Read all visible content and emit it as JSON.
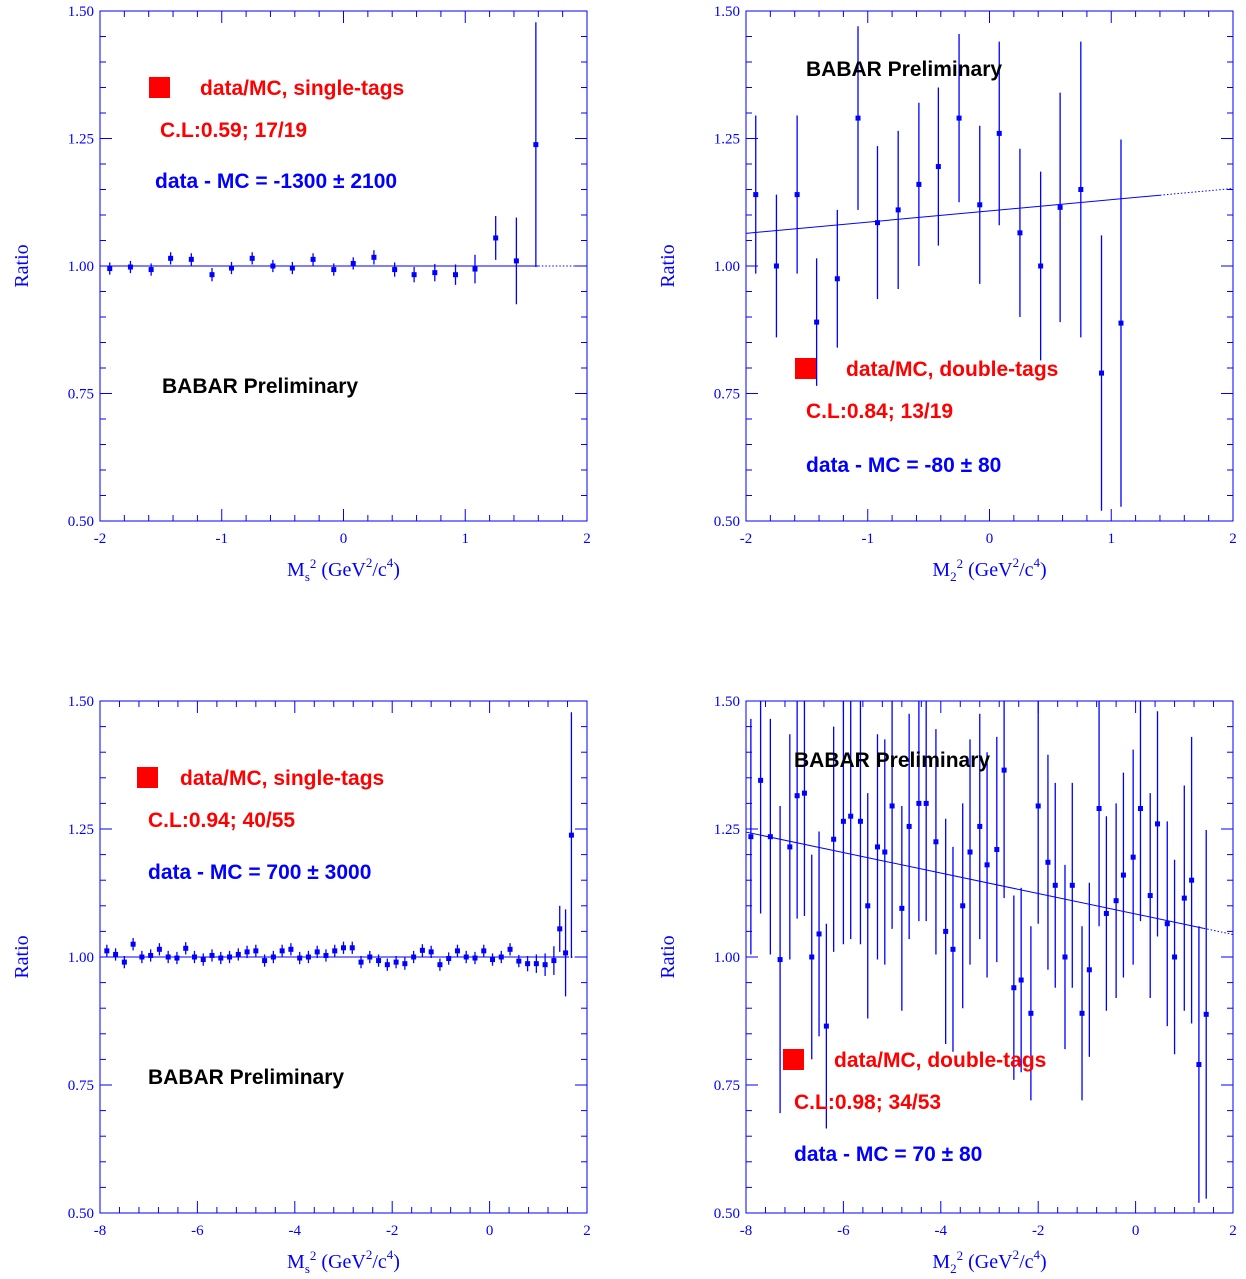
{
  "colors": {
    "axes": "#0000ff",
    "data": "#0000ff",
    "legend_marker": "#ff0000",
    "legend_text": "#ff0000",
    "stat_text": "#0000ff",
    "preliminary_text": "#000000"
  },
  "chart_data": [
    {
      "type": "scatter",
      "ylabel": "Ratio",
      "xlabel_main": "M",
      "xlabel_sub": "s",
      "xlabel_sup": "2",
      "xlabel_unit_pre": " (GeV",
      "xlabel_unit_mid": "/c",
      "xlabel_unit_sup1": "2",
      "xlabel_unit_sup2": "4",
      "xlabel_unit_post": ")",
      "xlim": [
        -2,
        2
      ],
      "ylim": [
        0.5,
        1.5
      ],
      "xticks": [
        "-2",
        "-1",
        "0",
        "1",
        "2"
      ],
      "yticks": [
        "0.50",
        "0.75",
        "1.00",
        "1.25",
        "1.50"
      ],
      "legend": "data/MC, single-tags",
      "cl": "C.L:0.59; 17/19",
      "diff": "data - MC =  -1300 ± 2100",
      "preliminary": "BABAR Preliminary",
      "fit": {
        "intercept": 1.0,
        "slope": 0.0,
        "solid_to": 1.6
      },
      "points": [
        {
          "x": -1.92,
          "y": 0.995,
          "err": 0.012
        },
        {
          "x": -1.75,
          "y": 0.998,
          "err": 0.012
        },
        {
          "x": -1.58,
          "y": 0.993,
          "err": 0.012
        },
        {
          "x": -1.42,
          "y": 1.015,
          "err": 0.012
        },
        {
          "x": -1.25,
          "y": 1.013,
          "err": 0.012
        },
        {
          "x": -1.08,
          "y": 0.983,
          "err": 0.013
        },
        {
          "x": -0.92,
          "y": 0.996,
          "err": 0.012
        },
        {
          "x": -0.75,
          "y": 1.015,
          "err": 0.012
        },
        {
          "x": -0.58,
          "y": 1.0,
          "err": 0.012
        },
        {
          "x": -0.42,
          "y": 0.996,
          "err": 0.012
        },
        {
          "x": -0.25,
          "y": 1.013,
          "err": 0.012
        },
        {
          "x": -0.08,
          "y": 0.993,
          "err": 0.012
        },
        {
          "x": 0.08,
          "y": 1.005,
          "err": 0.012
        },
        {
          "x": 0.25,
          "y": 1.017,
          "err": 0.014
        },
        {
          "x": 0.42,
          "y": 0.993,
          "err": 0.014
        },
        {
          "x": 0.58,
          "y": 0.983,
          "err": 0.015
        },
        {
          "x": 0.75,
          "y": 0.987,
          "err": 0.017
        },
        {
          "x": 0.92,
          "y": 0.983,
          "err": 0.02
        },
        {
          "x": 1.08,
          "y": 0.994,
          "err": 0.028
        },
        {
          "x": 1.25,
          "y": 1.055,
          "err": 0.043
        },
        {
          "x": 1.42,
          "y": 1.01,
          "err": 0.085
        },
        {
          "x": 1.58,
          "y": 1.238,
          "err": 0.24
        }
      ]
    },
    {
      "type": "scatter",
      "ylabel": "Ratio",
      "xlabel_main": "M",
      "xlabel_sub": "2",
      "xlabel_sup": "2",
      "xlabel_unit_pre": " (GeV",
      "xlabel_unit_mid": "/c",
      "xlabel_unit_sup1": "2",
      "xlabel_unit_sup2": "4",
      "xlabel_unit_post": ")",
      "xlim": [
        -2,
        2
      ],
      "ylim": [
        0.5,
        1.5
      ],
      "xticks": [
        "-2",
        "-1",
        "0",
        "1",
        "2"
      ],
      "yticks": [
        "0.50",
        "0.75",
        "1.00",
        "1.25",
        "1.50"
      ],
      "legend": "data/MC, double-tags",
      "cl": "C.L:0.84; 13/19",
      "diff": "data - MC = -80 ± 80",
      "preliminary": "BABAR Preliminary",
      "fit": {
        "intercept": 1.108,
        "slope": 0.022,
        "solid_to": 1.4
      },
      "points": [
        {
          "x": -1.92,
          "y": 1.14,
          "err": 0.155
        },
        {
          "x": -1.75,
          "y": 1.0,
          "err": 0.14
        },
        {
          "x": -1.58,
          "y": 1.14,
          "err": 0.155
        },
        {
          "x": -1.42,
          "y": 0.89,
          "err": 0.125
        },
        {
          "x": -1.25,
          "y": 0.975,
          "err": 0.135
        },
        {
          "x": -1.08,
          "y": 1.29,
          "err": 0.18
        },
        {
          "x": -0.92,
          "y": 1.085,
          "err": 0.15
        },
        {
          "x": -0.75,
          "y": 1.11,
          "err": 0.155
        },
        {
          "x": -0.58,
          "y": 1.16,
          "err": 0.16
        },
        {
          "x": -0.42,
          "y": 1.195,
          "err": 0.155
        },
        {
          "x": -0.25,
          "y": 1.29,
          "err": 0.165
        },
        {
          "x": -0.08,
          "y": 1.12,
          "err": 0.155
        },
        {
          "x": 0.08,
          "y": 1.26,
          "err": 0.18
        },
        {
          "x": 0.25,
          "y": 1.065,
          "err": 0.165
        },
        {
          "x": 0.42,
          "y": 1.0,
          "err": 0.185
        },
        {
          "x": 0.58,
          "y": 1.115,
          "err": 0.225
        },
        {
          "x": 0.75,
          "y": 1.15,
          "err": 0.29
        },
        {
          "x": 0.92,
          "y": 0.79,
          "err": 0.27
        },
        {
          "x": 1.08,
          "y": 0.888,
          "err": 0.36
        }
      ]
    },
    {
      "type": "scatter",
      "ylabel": "Ratio",
      "xlabel_main": "M",
      "xlabel_sub": "s",
      "xlabel_sup": "2",
      "xlabel_unit_pre": " (GeV",
      "xlabel_unit_mid": "/c",
      "xlabel_unit_sup1": "2",
      "xlabel_unit_sup2": "4",
      "xlabel_unit_post": ")",
      "xlim": [
        -8,
        2
      ],
      "ylim": [
        0.5,
        1.5
      ],
      "xticks": [
        "-8",
        "-6",
        "-4",
        "-2",
        "0",
        "2"
      ],
      "yticks": [
        "0.50",
        "0.75",
        "1.00",
        "1.25",
        "1.50"
      ],
      "legend": "data/MC, single-tags",
      "cl": "C.L:0.94; 40/55",
      "diff": "data - MC = 700 ± 3000",
      "preliminary": "BABAR Preliminary",
      "fit": {
        "intercept": 1.0,
        "slope": 0.0,
        "solid_to": 1.6
      },
      "points": [
        {
          "x": -7.86,
          "y": 1.012,
          "err": 0.012
        },
        {
          "x": -7.68,
          "y": 1.005,
          "err": 0.012
        },
        {
          "x": -7.5,
          "y": 0.99,
          "err": 0.012
        },
        {
          "x": -7.32,
          "y": 1.025,
          "err": 0.012
        },
        {
          "x": -7.14,
          "y": 1.0,
          "err": 0.012
        },
        {
          "x": -6.96,
          "y": 1.003,
          "err": 0.012
        },
        {
          "x": -6.78,
          "y": 1.015,
          "err": 0.012
        },
        {
          "x": -6.6,
          "y": 1.0,
          "err": 0.012
        },
        {
          "x": -6.42,
          "y": 0.998,
          "err": 0.012
        },
        {
          "x": -6.24,
          "y": 1.017,
          "err": 0.012
        },
        {
          "x": -6.06,
          "y": 1.0,
          "err": 0.012
        },
        {
          "x": -5.88,
          "y": 0.995,
          "err": 0.012
        },
        {
          "x": -5.7,
          "y": 1.003,
          "err": 0.012
        },
        {
          "x": -5.52,
          "y": 0.998,
          "err": 0.012
        },
        {
          "x": -5.34,
          "y": 1.0,
          "err": 0.012
        },
        {
          "x": -5.16,
          "y": 1.005,
          "err": 0.012
        },
        {
          "x": -4.98,
          "y": 1.01,
          "err": 0.012
        },
        {
          "x": -4.8,
          "y": 1.012,
          "err": 0.012
        },
        {
          "x": -4.62,
          "y": 0.993,
          "err": 0.012
        },
        {
          "x": -4.44,
          "y": 1.0,
          "err": 0.012
        },
        {
          "x": -4.26,
          "y": 1.012,
          "err": 0.012
        },
        {
          "x": -4.08,
          "y": 1.015,
          "err": 0.012
        },
        {
          "x": -3.9,
          "y": 0.998,
          "err": 0.012
        },
        {
          "x": -3.72,
          "y": 1.0,
          "err": 0.012
        },
        {
          "x": -3.54,
          "y": 1.01,
          "err": 0.012
        },
        {
          "x": -3.36,
          "y": 1.003,
          "err": 0.012
        },
        {
          "x": -3.18,
          "y": 1.012,
          "err": 0.012
        },
        {
          "x": -3.0,
          "y": 1.018,
          "err": 0.012
        },
        {
          "x": -2.82,
          "y": 1.018,
          "err": 0.012
        },
        {
          "x": -2.64,
          "y": 0.99,
          "err": 0.012
        },
        {
          "x": -2.46,
          "y": 1.0,
          "err": 0.012
        },
        {
          "x": -2.28,
          "y": 0.993,
          "err": 0.012
        },
        {
          "x": -2.1,
          "y": 0.985,
          "err": 0.012
        },
        {
          "x": -1.92,
          "y": 0.99,
          "err": 0.012
        },
        {
          "x": -1.74,
          "y": 0.987,
          "err": 0.012
        },
        {
          "x": -1.56,
          "y": 1.0,
          "err": 0.012
        },
        {
          "x": -1.38,
          "y": 1.013,
          "err": 0.012
        },
        {
          "x": -1.2,
          "y": 1.01,
          "err": 0.012
        },
        {
          "x": -1.02,
          "y": 0.985,
          "err": 0.012
        },
        {
          "x": -0.84,
          "y": 0.997,
          "err": 0.012
        },
        {
          "x": -0.66,
          "y": 1.012,
          "err": 0.012
        },
        {
          "x": -0.48,
          "y": 1.0,
          "err": 0.012
        },
        {
          "x": -0.3,
          "y": 0.998,
          "err": 0.012
        },
        {
          "x": -0.12,
          "y": 1.012,
          "err": 0.012
        },
        {
          "x": 0.06,
          "y": 0.995,
          "err": 0.012
        },
        {
          "x": 0.24,
          "y": 1.0,
          "err": 0.012
        },
        {
          "x": 0.42,
          "y": 1.015,
          "err": 0.012
        },
        {
          "x": 0.6,
          "y": 0.992,
          "err": 0.012
        },
        {
          "x": 0.78,
          "y": 0.987,
          "err": 0.015
        },
        {
          "x": 0.96,
          "y": 0.987,
          "err": 0.018
        },
        {
          "x": 1.14,
          "y": 0.985,
          "err": 0.022
        },
        {
          "x": 1.32,
          "y": 0.993,
          "err": 0.028
        },
        {
          "x": 1.44,
          "y": 1.055,
          "err": 0.045
        },
        {
          "x": 1.56,
          "y": 1.008,
          "err": 0.085
        },
        {
          "x": 1.68,
          "y": 1.238,
          "err": 0.24
        }
      ]
    },
    {
      "type": "scatter",
      "ylabel": "Ratio",
      "xlabel_main": "M",
      "xlabel_sub": "2",
      "xlabel_sup": "2",
      "xlabel_unit_pre": " (GeV",
      "xlabel_unit_mid": "/c",
      "xlabel_unit_sup1": "2",
      "xlabel_unit_sup2": "4",
      "xlabel_unit_post": ")",
      "xlim": [
        -8,
        2
      ],
      "ylim": [
        0.5,
        1.5
      ],
      "xticks": [
        "-8",
        "-6",
        "-4",
        "-2",
        "0",
        "2"
      ],
      "yticks": [
        "0.50",
        "0.75",
        "1.00",
        "1.25",
        "1.50"
      ],
      "legend": "data/MC, double-tags",
      "cl": "C.L:0.98; 34/53",
      "diff": "data - MC = 70 ± 80",
      "preliminary": "BABAR Preliminary",
      "fit": {
        "intercept": 1.084,
        "slope": -0.02,
        "solid_to": 1.4
      },
      "points": [
        {
          "x": -7.9,
          "y": 1.235,
          "err": 0.23
        },
        {
          "x": -7.7,
          "y": 1.345,
          "err": 0.26
        },
        {
          "x": -7.5,
          "y": 1.235,
          "err": 0.23
        },
        {
          "x": -7.3,
          "y": 0.995,
          "err": 0.3
        },
        {
          "x": -7.1,
          "y": 1.215,
          "err": 0.22
        },
        {
          "x": -6.95,
          "y": 1.315,
          "err": 0.24
        },
        {
          "x": -6.8,
          "y": 1.32,
          "err": 0.24
        },
        {
          "x": -6.65,
          "y": 1.0,
          "err": 0.2
        },
        {
          "x": -6.5,
          "y": 1.045,
          "err": 0.2
        },
        {
          "x": -6.35,
          "y": 0.865,
          "err": 0.2
        },
        {
          "x": -6.2,
          "y": 1.23,
          "err": 0.22
        },
        {
          "x": -6.0,
          "y": 1.265,
          "err": 0.24
        },
        {
          "x": -5.85,
          "y": 1.275,
          "err": 0.24
        },
        {
          "x": -5.65,
          "y": 1.265,
          "err": 0.24
        },
        {
          "x": -5.5,
          "y": 1.1,
          "err": 0.22
        },
        {
          "x": -5.3,
          "y": 1.215,
          "err": 0.22
        },
        {
          "x": -5.15,
          "y": 1.205,
          "err": 0.22
        },
        {
          "x": -5.0,
          "y": 1.295,
          "err": 0.24
        },
        {
          "x": -4.8,
          "y": 1.095,
          "err": 0.2
        },
        {
          "x": -4.65,
          "y": 1.255,
          "err": 0.22
        },
        {
          "x": -4.45,
          "y": 1.3,
          "err": 0.23
        },
        {
          "x": -4.3,
          "y": 1.3,
          "err": 0.23
        },
        {
          "x": -4.1,
          "y": 1.225,
          "err": 0.22
        },
        {
          "x": -3.9,
          "y": 1.05,
          "err": 0.22
        },
        {
          "x": -3.75,
          "y": 1.015,
          "err": 0.2
        },
        {
          "x": -3.55,
          "y": 1.1,
          "err": 0.2
        },
        {
          "x": -3.4,
          "y": 1.205,
          "err": 0.22
        },
        {
          "x": -3.2,
          "y": 1.255,
          "err": 0.22
        },
        {
          "x": -3.05,
          "y": 1.18,
          "err": 0.22
        },
        {
          "x": -2.85,
          "y": 1.21,
          "err": 0.22
        },
        {
          "x": -2.7,
          "y": 1.365,
          "err": 0.25
        },
        {
          "x": -2.5,
          "y": 0.94,
          "err": 0.18
        },
        {
          "x": -2.35,
          "y": 0.955,
          "err": 0.18
        },
        {
          "x": -2.15,
          "y": 0.89,
          "err": 0.17
        },
        {
          "x": -2.0,
          "y": 1.295,
          "err": 0.23
        },
        {
          "x": -1.8,
          "y": 1.185,
          "err": 0.21
        },
        {
          "x": -1.65,
          "y": 1.14,
          "err": 0.2
        },
        {
          "x": -1.45,
          "y": 1.0,
          "err": 0.18
        },
        {
          "x": -1.3,
          "y": 1.14,
          "err": 0.2
        },
        {
          "x": -1.1,
          "y": 0.89,
          "err": 0.17
        },
        {
          "x": -0.95,
          "y": 0.975,
          "err": 0.17
        },
        {
          "x": -0.75,
          "y": 1.29,
          "err": 0.23
        },
        {
          "x": -0.6,
          "y": 1.085,
          "err": 0.19
        },
        {
          "x": -0.4,
          "y": 1.11,
          "err": 0.19
        },
        {
          "x": -0.25,
          "y": 1.16,
          "err": 0.2
        },
        {
          "x": -0.05,
          "y": 1.195,
          "err": 0.21
        },
        {
          "x": 0.1,
          "y": 1.29,
          "err": 0.22
        },
        {
          "x": 0.3,
          "y": 1.12,
          "err": 0.2
        },
        {
          "x": 0.45,
          "y": 1.26,
          "err": 0.22
        },
        {
          "x": 0.65,
          "y": 1.065,
          "err": 0.2
        },
        {
          "x": 0.8,
          "y": 1.0,
          "err": 0.19
        },
        {
          "x": 1.0,
          "y": 1.115,
          "err": 0.22
        },
        {
          "x": 1.15,
          "y": 1.15,
          "err": 0.28
        },
        {
          "x": 1.3,
          "y": 0.79,
          "err": 0.27
        },
        {
          "x": 1.45,
          "y": 0.888,
          "err": 0.36
        }
      ]
    }
  ]
}
